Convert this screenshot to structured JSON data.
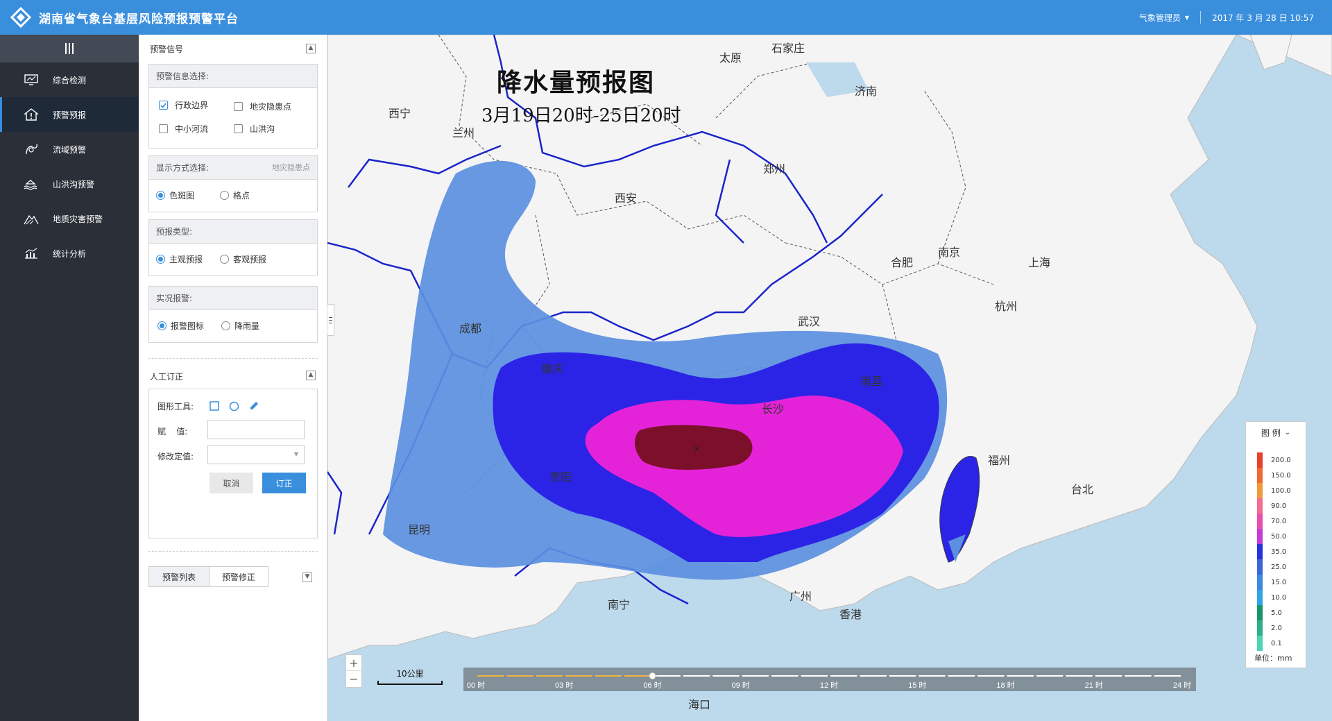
{
  "app": {
    "title": "湖南省气象台基层风险预报预警平台",
    "user": "气象管理员",
    "datetime": "2017 年 3 月 28 日 10:57"
  },
  "sidebar": {
    "items": [
      {
        "label": "综合检测",
        "icon": "monitor-icon"
      },
      {
        "label": "预警预报",
        "icon": "alert-home-icon"
      },
      {
        "label": "流域预警",
        "icon": "basin-icon"
      },
      {
        "label": "山洪沟预警",
        "icon": "flood-icon"
      },
      {
        "label": "地质灾害预警",
        "icon": "geology-icon"
      },
      {
        "label": "统计分析",
        "icon": "chart-icon"
      }
    ]
  },
  "panel": {
    "section_title": "预警信号",
    "info_select": {
      "title": "预警信息选择:",
      "options": [
        {
          "label": "行政边界",
          "checked": true
        },
        {
          "label": "地灾隐患点",
          "checked": false
        },
        {
          "label": "中小河流",
          "checked": false
        },
        {
          "label": "山洪沟",
          "checked": false
        }
      ]
    },
    "display_mode": {
      "title": "显示方式选择:",
      "hint": "地灾隐患点",
      "options": [
        {
          "label": "色斑图",
          "checked": true
        },
        {
          "label": "格点",
          "checked": false
        }
      ]
    },
    "forecast_type": {
      "title": "预报类型:",
      "options": [
        {
          "label": "主观预报",
          "checked": true
        },
        {
          "label": "客观预报",
          "checked": false
        }
      ]
    },
    "live_alarm": {
      "title": "实况报警:",
      "options": [
        {
          "label": "报警图标",
          "checked": true
        },
        {
          "label": "降雨量",
          "checked": false
        }
      ]
    },
    "manual": {
      "title": "人工订正",
      "tools_label": "图形工具:",
      "assign_label": "赋    值:",
      "assign_value": "",
      "modify_label": "修改定值:",
      "modify_value": "",
      "cancel": "取消",
      "confirm": "订正"
    },
    "tabs": [
      "预警列表",
      "预警修正"
    ]
  },
  "map": {
    "title": "降水量预报图",
    "subtitle": "3月19日20时-25日20时",
    "cities": [
      "太原",
      "石家庄",
      "济南",
      "西宁",
      "兰州",
      "郑州",
      "西安",
      "合肥",
      "南京",
      "上海",
      "杭州",
      "成都",
      "武汉",
      "重庆",
      "南昌",
      "长沙",
      "福州",
      "台北",
      "贵阳",
      "昆明",
      "南宁",
      "广州",
      "香港",
      "海口"
    ],
    "scale_label": "10公里",
    "timeline": {
      "labels": [
        "00 时",
        "03 时",
        "06 时",
        "09 时",
        "12 时",
        "15 时",
        "18 时",
        "21 时",
        "24 时"
      ],
      "current_hour": 6
    }
  },
  "legend": {
    "title": "图 例",
    "unit": "单位：mm",
    "items": [
      {
        "value": "200.0",
        "color": "#e8412d"
      },
      {
        "value": "150.0",
        "color": "#ee6a2e"
      },
      {
        "value": "100.0",
        "color": "#f19a3b"
      },
      {
        "value": "90.0",
        "color": "#f26d8f"
      },
      {
        "value": "70.0",
        "color": "#e94fb0"
      },
      {
        "value": "50.0",
        "color": "#c43dd6"
      },
      {
        "value": "35.0",
        "color": "#2432e0"
      },
      {
        "value": "25.0",
        "color": "#3b66d8"
      },
      {
        "value": "15.0",
        "color": "#3c8ae0"
      },
      {
        "value": "10.0",
        "color": "#2fa5e6"
      },
      {
        "value": "5.0",
        "color": "#17956b"
      },
      {
        "value": "2.0",
        "color": "#2fb08a"
      },
      {
        "value": "0.1",
        "color": "#4dd4b4"
      }
    ]
  }
}
